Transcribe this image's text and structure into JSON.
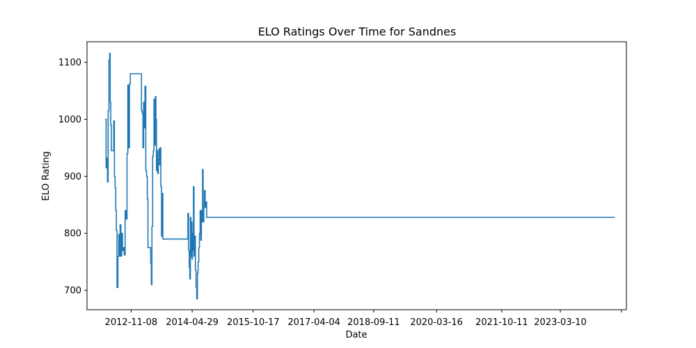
{
  "chart_data": {
    "type": "line",
    "title": "ELO Ratings Over Time for Sandnes",
    "xlabel": "Date",
    "ylabel": "ELO Rating",
    "grid": false,
    "legend": "none",
    "line_color": "#1f77b4",
    "xlim": [
      "2011-10-17",
      "2024-10-11"
    ],
    "ylim": [
      666,
      1136
    ],
    "x_ticks": [
      "2012-11-08",
      "2014-04-29",
      "2015-10-17",
      "2017-04-04",
      "2018-09-11",
      "2020-03-16",
      "2021-10-11",
      "2023-03-10",
      ""
    ],
    "y_ticks": [
      700,
      800,
      900,
      1000,
      1100
    ],
    "series": [
      {
        "name": "",
        "points": [
          [
            "2012-03-24",
            1000
          ],
          [
            "2012-04-02",
            915
          ],
          [
            "2012-04-09",
            932
          ],
          [
            "2012-04-14",
            890
          ],
          [
            "2012-04-20",
            1015
          ],
          [
            "2012-04-27",
            1104
          ],
          [
            "2012-05-03",
            1116
          ],
          [
            "2012-05-08",
            1030
          ],
          [
            "2012-05-13",
            990
          ],
          [
            "2012-05-18",
            945
          ],
          [
            "2012-05-30",
            945
          ],
          [
            "2012-06-08",
            997
          ],
          [
            "2012-06-14",
            900
          ],
          [
            "2012-06-20",
            880
          ],
          [
            "2012-06-26",
            840
          ],
          [
            "2012-07-01",
            805
          ],
          [
            "2012-07-07",
            705
          ],
          [
            "2012-07-15",
            760
          ],
          [
            "2012-07-22",
            798
          ],
          [
            "2012-07-28",
            760
          ],
          [
            "2012-08-03",
            815
          ],
          [
            "2012-08-10",
            760
          ],
          [
            "2012-08-17",
            800
          ],
          [
            "2012-08-24",
            770
          ],
          [
            "2012-08-30",
            775
          ],
          [
            "2012-09-08",
            762
          ],
          [
            "2012-09-16",
            840
          ],
          [
            "2012-09-24",
            825
          ],
          [
            "2012-10-03",
            940
          ],
          [
            "2012-10-10",
            1060
          ],
          [
            "2012-10-17",
            950
          ],
          [
            "2012-10-24",
            1062
          ],
          [
            "2012-11-01",
            1080
          ],
          [
            "2012-11-20",
            1080
          ],
          [
            "2012-12-20",
            1080
          ],
          [
            "2013-01-20",
            1080
          ],
          [
            "2013-02-04",
            1080
          ],
          [
            "2013-02-07",
            1015
          ],
          [
            "2013-02-14",
            1010
          ],
          [
            "2013-02-20",
            950
          ],
          [
            "2013-02-26",
            1030
          ],
          [
            "2013-03-04",
            985
          ],
          [
            "2013-03-10",
            1058
          ],
          [
            "2013-03-17",
            910
          ],
          [
            "2013-03-24",
            900
          ],
          [
            "2013-03-30",
            860
          ],
          [
            "2013-04-05",
            775
          ],
          [
            "2013-04-23",
            775
          ],
          [
            "2013-04-29",
            748
          ],
          [
            "2013-05-05",
            710
          ],
          [
            "2013-05-10",
            812
          ],
          [
            "2013-05-16",
            935
          ],
          [
            "2013-05-22",
            945
          ],
          [
            "2013-05-28",
            1035
          ],
          [
            "2013-06-03",
            955
          ],
          [
            "2013-06-09",
            1040
          ],
          [
            "2013-06-14",
            1000
          ],
          [
            "2013-06-19",
            910
          ],
          [
            "2013-06-24",
            945
          ],
          [
            "2013-06-29",
            905
          ],
          [
            "2013-07-05",
            930
          ],
          [
            "2013-07-11",
            948
          ],
          [
            "2013-07-16",
            920
          ],
          [
            "2013-07-21",
            950
          ],
          [
            "2013-07-27",
            882
          ],
          [
            "2013-08-02",
            795
          ],
          [
            "2013-08-08",
            870
          ],
          [
            "2013-08-14",
            790
          ],
          [
            "2013-09-14",
            790
          ],
          [
            "2013-10-20",
            790
          ],
          [
            "2013-11-20",
            790
          ],
          [
            "2013-12-20",
            790
          ],
          [
            "2014-03-17",
            790
          ],
          [
            "2014-03-22",
            835
          ],
          [
            "2014-03-28",
            770
          ],
          [
            "2014-04-03",
            740
          ],
          [
            "2014-04-08",
            720
          ],
          [
            "2014-04-13",
            828
          ],
          [
            "2014-04-18",
            760
          ],
          [
            "2014-04-22",
            820
          ],
          [
            "2014-04-27",
            755
          ],
          [
            "2014-05-01",
            800
          ],
          [
            "2014-05-06",
            770
          ],
          [
            "2014-05-10",
            882
          ],
          [
            "2014-05-15",
            760
          ],
          [
            "2014-05-21",
            795
          ],
          [
            "2014-05-27",
            735
          ],
          [
            "2014-06-02",
            705
          ],
          [
            "2014-06-08",
            685
          ],
          [
            "2014-06-14",
            730
          ],
          [
            "2014-06-20",
            750
          ],
          [
            "2014-06-26",
            775
          ],
          [
            "2014-07-02",
            800
          ],
          [
            "2014-07-08",
            840
          ],
          [
            "2014-07-14",
            788
          ],
          [
            "2014-07-19",
            840
          ],
          [
            "2014-07-24",
            820
          ],
          [
            "2014-07-29",
            912
          ],
          [
            "2014-08-03",
            820
          ],
          [
            "2014-08-09",
            850
          ],
          [
            "2014-08-15",
            875
          ],
          [
            "2014-08-21",
            845
          ],
          [
            "2014-08-27",
            855
          ],
          [
            "2014-09-03",
            828
          ],
          [
            "2024-06-30",
            828
          ]
        ]
      }
    ]
  }
}
